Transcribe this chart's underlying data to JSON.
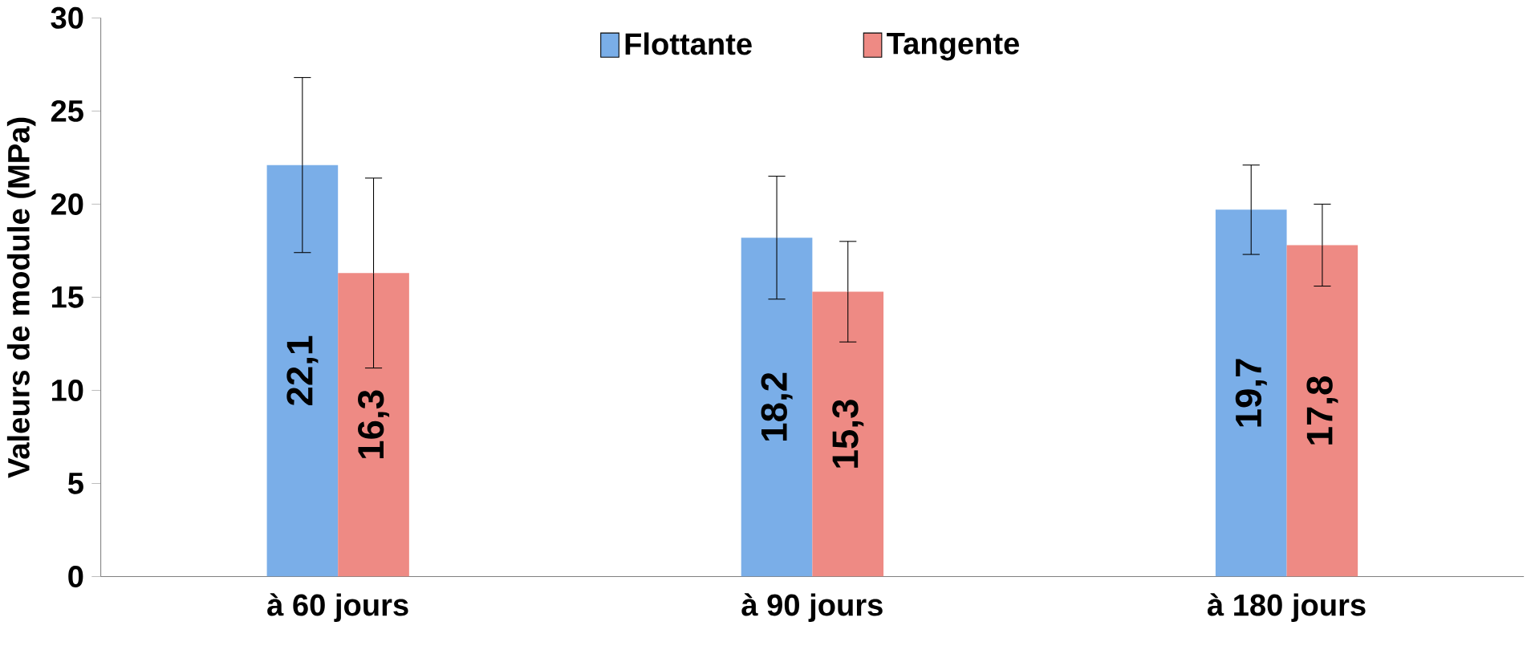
{
  "chart_data": {
    "type": "bar",
    "ylabel": "Valeurs de module (MPa)",
    "categories": [
      "à 60 jours",
      "à 90 jours",
      "à 180 jours"
    ],
    "series": [
      {
        "name": "Flottante",
        "color": "#7aaee8",
        "values": [
          22.1,
          18.2,
          19.7
        ],
        "value_labels": [
          "22,1",
          "18,2",
          "19,7"
        ],
        "errors": [
          4.7,
          3.3,
          2.4
        ]
      },
      {
        "name": "Tangente",
        "color": "#ee8a84",
        "values": [
          16.3,
          15.3,
          17.8
        ],
        "value_labels": [
          "16,3",
          "15,3",
          "17,8"
        ],
        "errors": [
          5.1,
          2.7,
          2.2
        ]
      }
    ],
    "ylim": [
      0,
      30
    ],
    "yticks": [
      0,
      5,
      10,
      15,
      20,
      25,
      30
    ],
    "grid": false,
    "legend": "top"
  }
}
